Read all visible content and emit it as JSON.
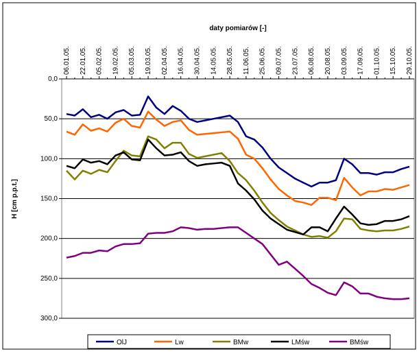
{
  "chart_data": {
    "type": "line",
    "title": "daty pomiarów [-]",
    "y_label": "H [cm p.p.t.]",
    "categories": [
      "06.01.05.",
      null,
      "22.01.05.",
      null,
      "05.02.05.",
      null,
      "19.02.05.",
      null,
      "05.03.05.",
      null,
      "19.03.05.",
      null,
      "02.04.05.",
      null,
      "16.04.05.",
      null,
      "30.04.05.",
      null,
      "14.05.05.",
      null,
      "28.05.05.",
      null,
      "11.06.05.",
      null,
      "25.06.05.",
      null,
      "09.07.05.",
      null,
      "23.07.05.",
      null,
      "06.08.05.",
      null,
      "20.08.05.",
      null,
      "03.09.05.",
      null,
      "17.09.05.",
      null,
      "01.10.05.",
      null,
      "15.10.05.",
      null,
      "29.10.05."
    ],
    "ylim": [
      0,
      300
    ],
    "y_inverted": true,
    "yticks": [
      {
        "value": 0,
        "label": "0,0"
      },
      {
        "value": 50,
        "label": "50,0"
      },
      {
        "value": 100,
        "label": "100,0"
      },
      {
        "value": 150,
        "label": "150,0"
      },
      {
        "value": 200,
        "label": "200,0"
      },
      {
        "value": 250,
        "label": "250,0"
      },
      {
        "value": 300,
        "label": "300,0"
      }
    ],
    "grid": true,
    "legend": "bottom",
    "series": [
      {
        "name": "OlJ",
        "color": "#000080",
        "values": [
          44,
          46,
          38,
          48,
          45,
          50,
          42,
          39,
          46,
          45,
          22,
          36,
          44,
          34,
          40,
          50,
          54,
          52,
          50,
          48,
          46,
          54,
          72,
          76,
          86,
          100,
          111,
          118,
          125,
          130,
          135,
          130,
          130,
          127,
          100,
          107,
          118,
          118,
          120,
          117,
          117,
          113,
          110
        ]
      },
      {
        "name": "Lw",
        "color": "#ff6600",
        "values": [
          66,
          70,
          57,
          65,
          62,
          66,
          55,
          50,
          59,
          61,
          41,
          51,
          59,
          54,
          52,
          64,
          70,
          69,
          68,
          67,
          66,
          75,
          95,
          100,
          112,
          126,
          138,
          146,
          153,
          155,
          158,
          149,
          149,
          152,
          124,
          136,
          146,
          141,
          141,
          138,
          139,
          136,
          133
        ]
      },
      {
        "name": "BMw",
        "color": "#808000",
        "values": [
          115,
          126,
          115,
          119,
          114,
          117,
          103,
          90,
          96,
          97,
          72,
          76,
          87,
          80,
          80,
          94,
          99,
          97,
          95,
          93,
          103,
          118,
          127,
          140,
          155,
          168,
          177,
          185,
          190,
          195,
          198,
          197,
          199,
          191,
          175,
          176,
          188,
          190,
          191,
          190,
          190,
          188,
          185
        ]
      },
      {
        "name": "LMśw",
        "color": "#000000",
        "values": [
          109,
          112,
          101,
          105,
          103,
          107,
          96,
          92,
          101,
          102,
          76,
          87,
          96,
          95,
          92,
          103,
          109,
          107,
          106,
          105,
          109,
          131,
          140,
          151,
          165,
          175,
          182,
          189,
          192,
          195,
          186,
          186,
          191,
          175,
          160,
          170,
          181,
          183,
          182,
          178,
          178,
          176,
          172
        ]
      },
      {
        "name": "BMśw",
        "color": "#800080",
        "values": [
          224,
          222,
          218,
          218,
          215,
          216,
          210,
          207,
          207,
          206,
          194,
          193,
          193,
          191,
          186,
          187,
          189,
          188,
          188,
          187,
          186,
          186,
          193,
          200,
          207,
          220,
          233,
          229,
          238,
          247,
          257,
          262,
          268,
          271,
          255,
          260,
          269,
          269,
          273,
          275,
          276,
          276,
          275
        ]
      }
    ]
  }
}
